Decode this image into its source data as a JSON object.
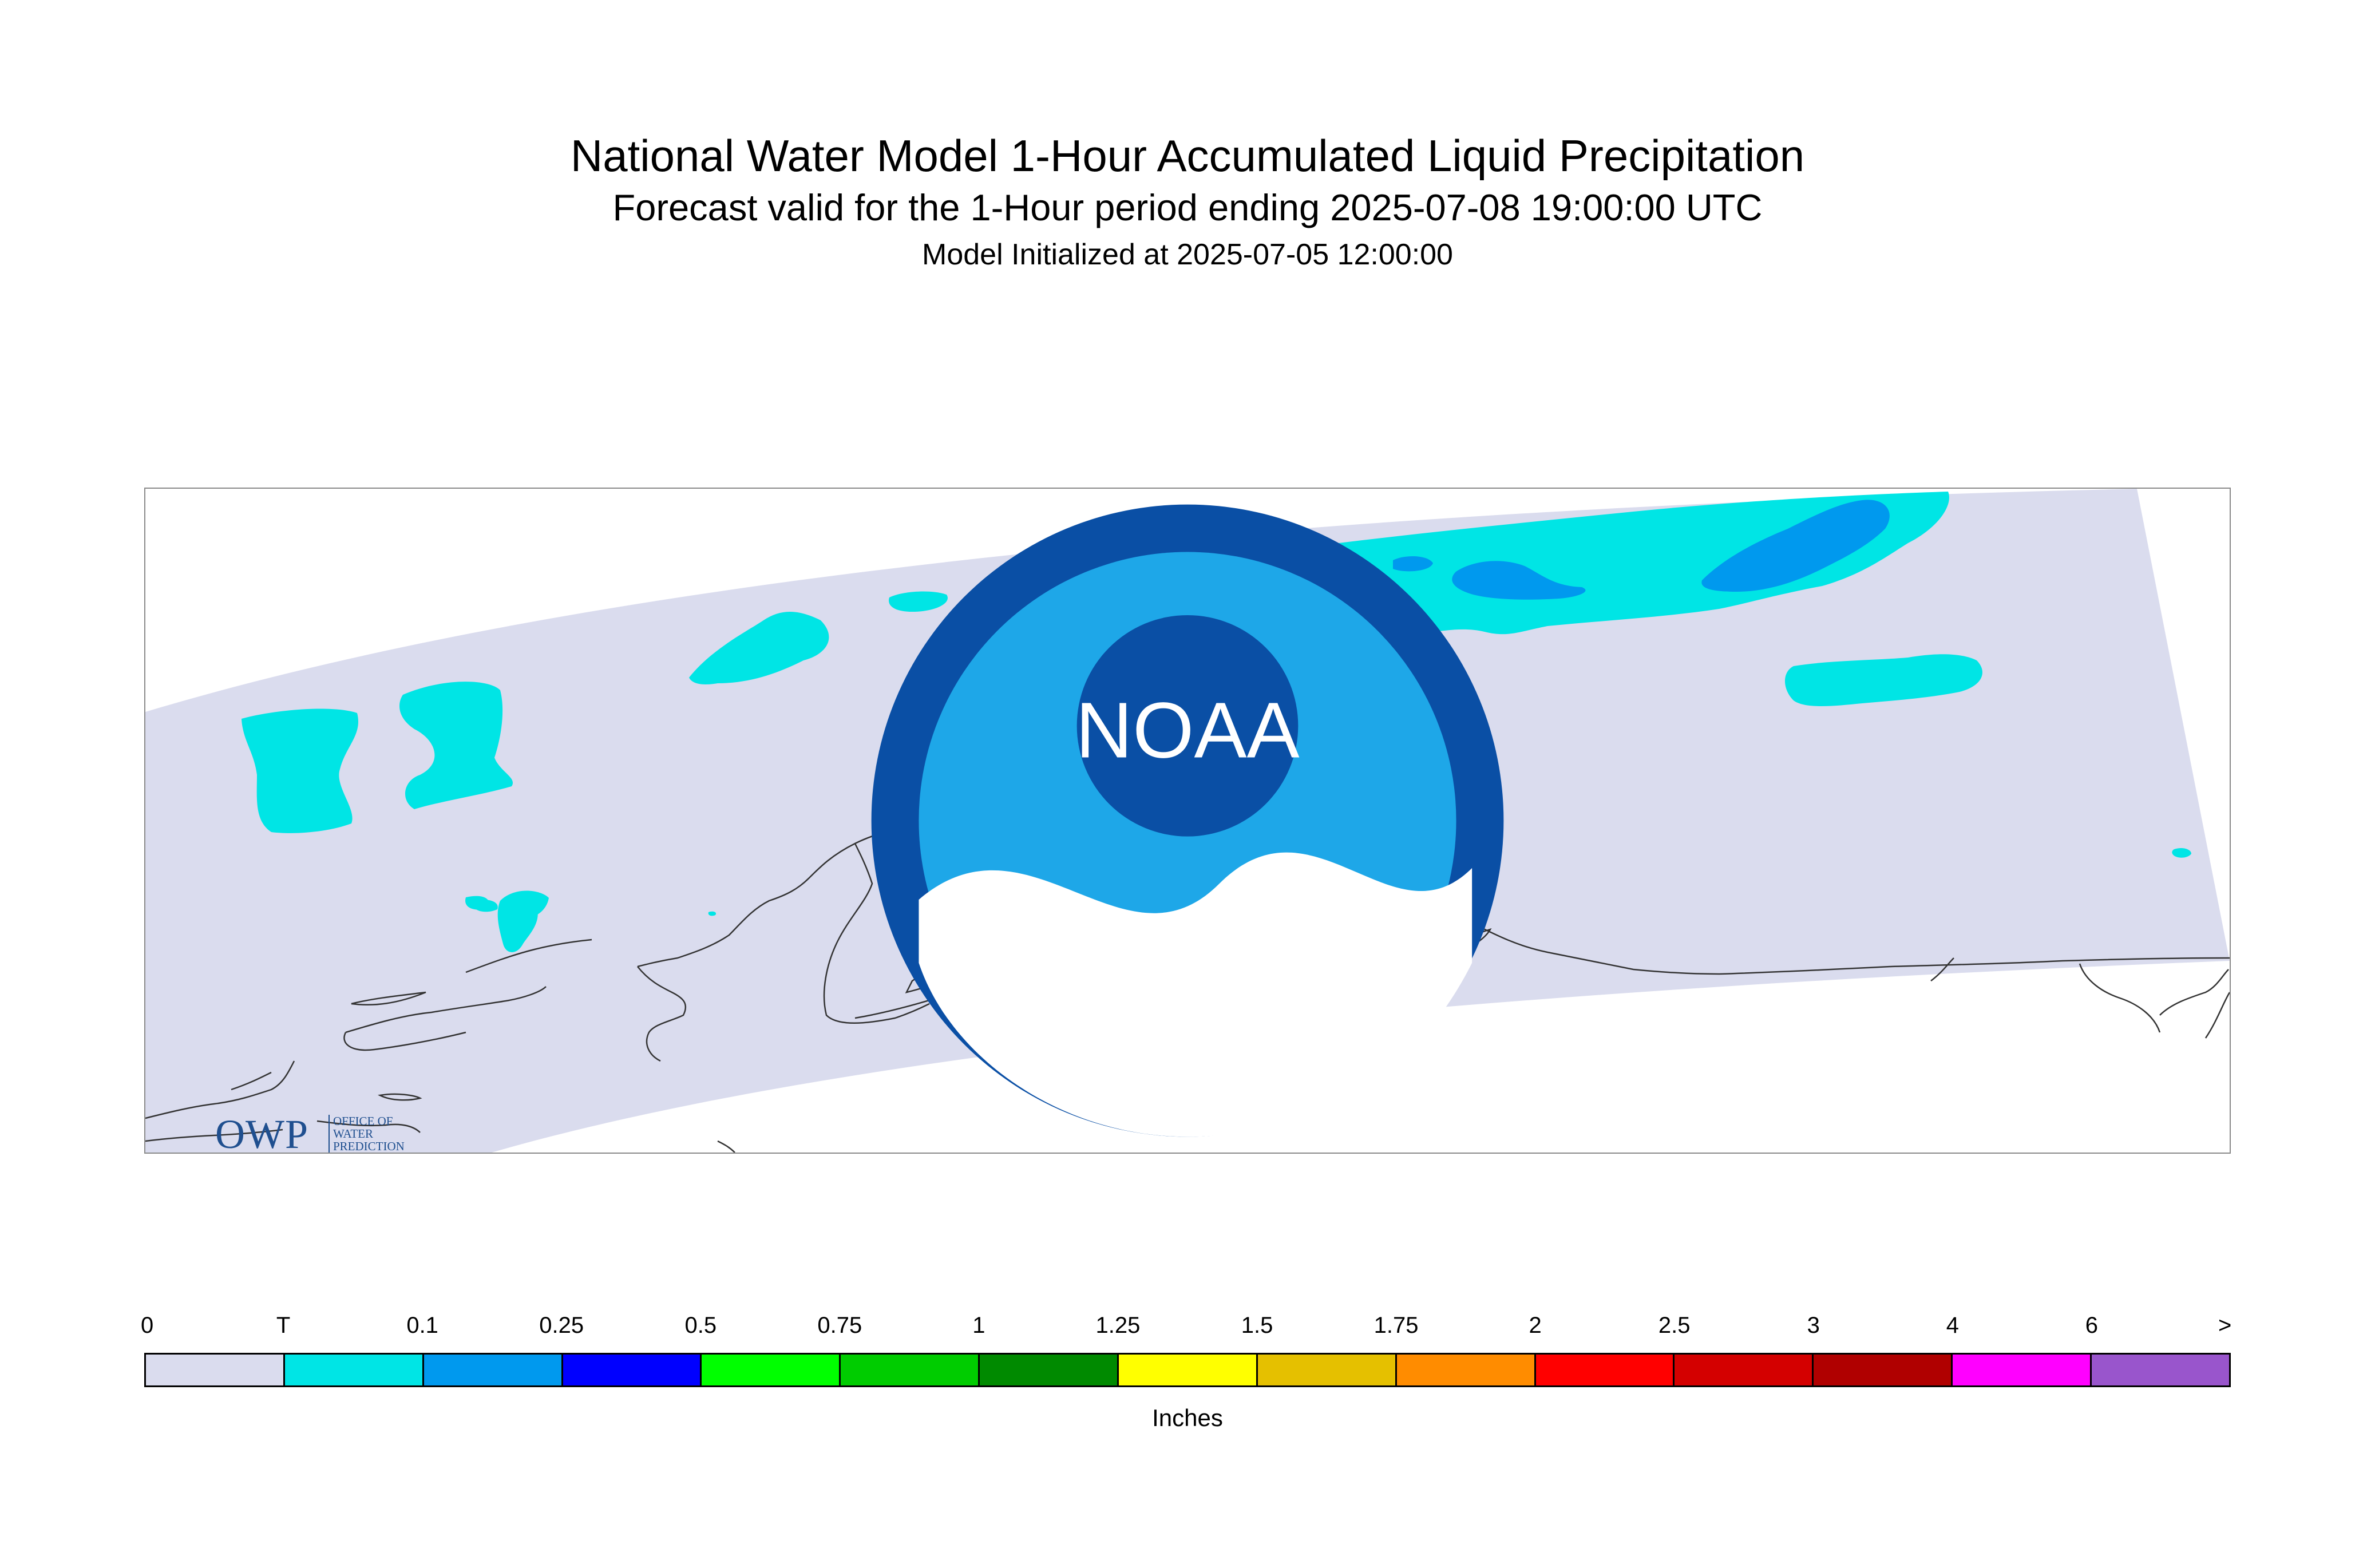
{
  "title": "National Water Model 1-Hour Accumulated Liquid Precipitation",
  "subtitle": "Forecast valid for the 1-Hour period ending 2025-07-08 19:00:00 UTC",
  "init_line": "Model Initialized at 2025-07-05 12:00:00",
  "logos": {
    "owp_main": "OWP",
    "owp_line1": "OFFICE OF",
    "owp_line2": "WATER",
    "owp_line3": "PREDICTION",
    "noaa": "NOAA"
  },
  "colors": {
    "background_domain": "#dadcee",
    "trace": "#00e5e5",
    "light_blue": "#0099ee",
    "coastline": "#333333"
  },
  "legend": {
    "units": "Inches",
    "labels": [
      "0",
      "T",
      "0.1",
      "0.25",
      "0.5",
      "0.75",
      "1",
      "1.25",
      "1.5",
      "1.75",
      "2",
      "2.5",
      "3",
      "4",
      "6",
      ">"
    ],
    "colors": [
      "#dadcee",
      "#00e5e5",
      "#0099ee",
      "#0000ff",
      "#00ff00",
      "#00cc00",
      "#008a00",
      "#ffff00",
      "#e5c000",
      "#ff8c00",
      "#ff0000",
      "#d40000",
      "#b00000",
      "#ff00ff",
      "#9955cc"
    ]
  }
}
